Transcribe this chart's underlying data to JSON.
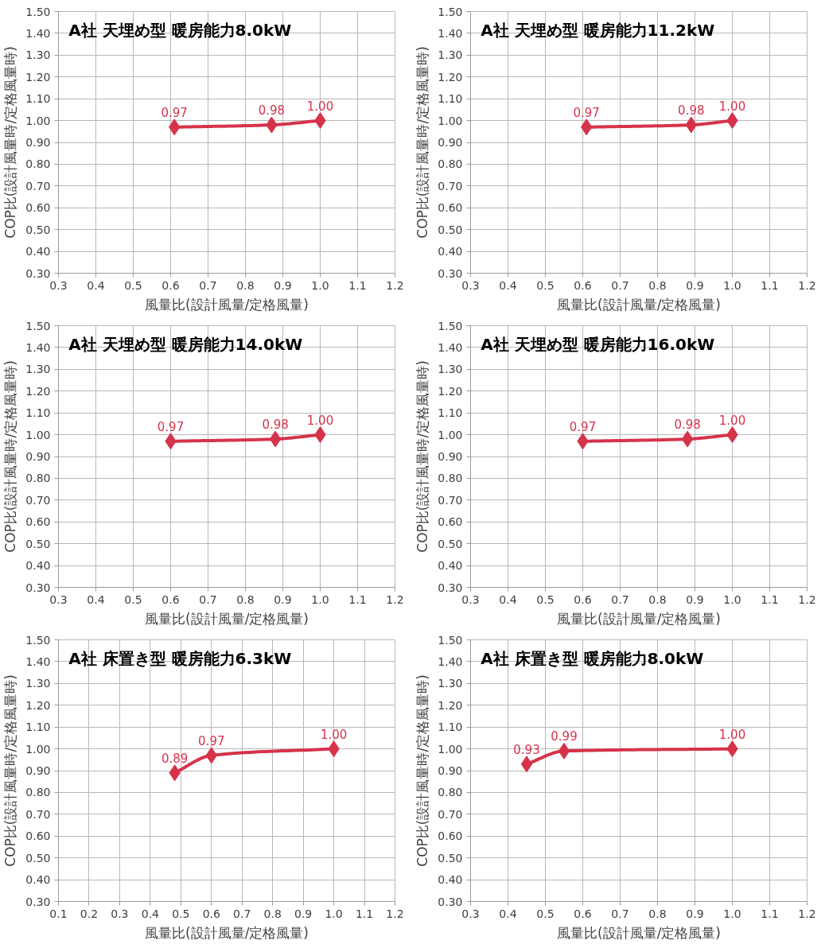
{
  "chart_data": [
    {
      "type": "line",
      "title": "A社 天埋め型 暖房能力8.0kW",
      "xlabel": "風量比(設計風量/定格風量)",
      "ylabel": "COP比(設計風量時/定格風量時)",
      "x": [
        0.61,
        0.87,
        1.0
      ],
      "series": [
        {
          "color": "#d6334b",
          "values": [
            0.97,
            0.98,
            1.0
          ],
          "value_labels": [
            "0.97",
            "0.98",
            "1.00"
          ]
        }
      ],
      "xlim": [
        0.3,
        1.2
      ],
      "ylim": [
        0.3,
        1.5
      ],
      "xticks": [
        {
          "value": 0.3,
          "label": "0.3"
        },
        {
          "value": 0.4,
          "label": "0.4"
        },
        {
          "value": 0.5,
          "label": "0.5"
        },
        {
          "value": 0.6,
          "label": "0.6"
        },
        {
          "value": 0.7,
          "label": "0.7"
        },
        {
          "value": 0.8,
          "label": "0.8"
        },
        {
          "value": 0.9,
          "label": "0.9"
        },
        {
          "value": 1.0,
          "label": "1.0"
        },
        {
          "value": 1.1,
          "label": "1.1"
        },
        {
          "value": 1.2,
          "label": "1.2"
        }
      ],
      "yticks": [
        {
          "value": 0.3,
          "label": "0.30"
        },
        {
          "value": 0.4,
          "label": "0.40"
        },
        {
          "value": 0.5,
          "label": "0.50"
        },
        {
          "value": 0.6,
          "label": "0.60"
        },
        {
          "value": 0.7,
          "label": "0.70"
        },
        {
          "value": 0.8,
          "label": "0.80"
        },
        {
          "value": 0.9,
          "label": "0.90"
        },
        {
          "value": 1.0,
          "label": "1.00"
        },
        {
          "value": 1.1,
          "label": "1.10"
        },
        {
          "value": 1.2,
          "label": "1.20"
        },
        {
          "value": 1.3,
          "label": "1.30"
        },
        {
          "value": 1.4,
          "label": "1.40"
        },
        {
          "value": 1.5,
          "label": "1.50"
        }
      ],
      "marker": "diamond",
      "line_style": "solid",
      "grid": true
    },
    {
      "type": "line",
      "title": "A社 天埋め型 暖房能力11.2kW",
      "xlabel": "風量比(設計風量/定格風量)",
      "ylabel": "COP比(設計風量時/定格風量時)",
      "x": [
        0.61,
        0.89,
        1.0
      ],
      "series": [
        {
          "color": "#d6334b",
          "values": [
            0.97,
            0.98,
            1.0
          ],
          "value_labels": [
            "0.97",
            "0.98",
            "1.00"
          ]
        }
      ],
      "xlim": [
        0.3,
        1.2
      ],
      "ylim": [
        0.3,
        1.5
      ],
      "xticks": [
        {
          "value": 0.3,
          "label": "0.3"
        },
        {
          "value": 0.4,
          "label": "0.4"
        },
        {
          "value": 0.5,
          "label": "0.5"
        },
        {
          "value": 0.6,
          "label": "0.6"
        },
        {
          "value": 0.7,
          "label": "0.7"
        },
        {
          "value": 0.8,
          "label": "0.8"
        },
        {
          "value": 0.9,
          "label": "0.9"
        },
        {
          "value": 1.0,
          "label": "1.0"
        },
        {
          "value": 1.1,
          "label": "1.1"
        },
        {
          "value": 1.2,
          "label": "1.2"
        }
      ],
      "yticks": [
        {
          "value": 0.3,
          "label": "0.30"
        },
        {
          "value": 0.4,
          "label": "0.40"
        },
        {
          "value": 0.5,
          "label": "0.50"
        },
        {
          "value": 0.6,
          "label": "0.60"
        },
        {
          "value": 0.7,
          "label": "0.70"
        },
        {
          "value": 0.8,
          "label": "0.80"
        },
        {
          "value": 0.9,
          "label": "0.90"
        },
        {
          "value": 1.0,
          "label": "1.00"
        },
        {
          "value": 1.1,
          "label": "1.10"
        },
        {
          "value": 1.2,
          "label": "1.20"
        },
        {
          "value": 1.3,
          "label": "1.30"
        },
        {
          "value": 1.4,
          "label": "1.40"
        },
        {
          "value": 1.5,
          "label": "1.50"
        }
      ],
      "marker": "diamond",
      "line_style": "solid",
      "grid": true
    },
    {
      "type": "line",
      "title": "A社 天埋め型 暖房能力14.0kW",
      "xlabel": "風量比(設計風量/定格風量)",
      "ylabel": "COP比(設計風量時/定格風量時)",
      "x": [
        0.6,
        0.88,
        1.0
      ],
      "series": [
        {
          "color": "#d6334b",
          "values": [
            0.97,
            0.98,
            1.0
          ],
          "value_labels": [
            "0.97",
            "0.98",
            "1.00"
          ]
        }
      ],
      "xlim": [
        0.3,
        1.2
      ],
      "ylim": [
        0.3,
        1.5
      ],
      "xticks": [
        {
          "value": 0.3,
          "label": "0.3"
        },
        {
          "value": 0.4,
          "label": "0.4"
        },
        {
          "value": 0.5,
          "label": "0.5"
        },
        {
          "value": 0.6,
          "label": "0.6"
        },
        {
          "value": 0.7,
          "label": "0.7"
        },
        {
          "value": 0.8,
          "label": "0.8"
        },
        {
          "value": 0.9,
          "label": "0.9"
        },
        {
          "value": 1.0,
          "label": "1.0"
        },
        {
          "value": 1.1,
          "label": "1.1"
        },
        {
          "value": 1.2,
          "label": "1.2"
        }
      ],
      "yticks": [
        {
          "value": 0.3,
          "label": "0.30"
        },
        {
          "value": 0.4,
          "label": "0.40"
        },
        {
          "value": 0.5,
          "label": "0.50"
        },
        {
          "value": 0.6,
          "label": "0.60"
        },
        {
          "value": 0.7,
          "label": "0.70"
        },
        {
          "value": 0.8,
          "label": "0.80"
        },
        {
          "value": 0.9,
          "label": "0.90"
        },
        {
          "value": 1.0,
          "label": "1.00"
        },
        {
          "value": 1.1,
          "label": "1.10"
        },
        {
          "value": 1.2,
          "label": "1.20"
        },
        {
          "value": 1.3,
          "label": "1.30"
        },
        {
          "value": 1.4,
          "label": "1.40"
        },
        {
          "value": 1.5,
          "label": "1.50"
        }
      ],
      "marker": "diamond",
      "line_style": "solid",
      "grid": true
    },
    {
      "type": "line",
      "title": "A社 天埋め型 暖房能力16.0kW",
      "xlabel": "風量比(設計風量/定格風量)",
      "ylabel": "COP比(設計風量時/定格風量時)",
      "x": [
        0.6,
        0.88,
        1.0
      ],
      "series": [
        {
          "color": "#d6334b",
          "values": [
            0.97,
            0.98,
            1.0
          ],
          "value_labels": [
            "0.97",
            "0.98",
            "1.00"
          ]
        }
      ],
      "xlim": [
        0.3,
        1.2
      ],
      "ylim": [
        0.3,
        1.5
      ],
      "xticks": [
        {
          "value": 0.3,
          "label": "0.3"
        },
        {
          "value": 0.4,
          "label": "0.4"
        },
        {
          "value": 0.5,
          "label": "0.5"
        },
        {
          "value": 0.6,
          "label": "0.6"
        },
        {
          "value": 0.7,
          "label": "0.7"
        },
        {
          "value": 0.8,
          "label": "0.8"
        },
        {
          "value": 0.9,
          "label": "0.9"
        },
        {
          "value": 1.0,
          "label": "1.0"
        },
        {
          "value": 1.1,
          "label": "1.1"
        },
        {
          "value": 1.2,
          "label": "1.2"
        }
      ],
      "yticks": [
        {
          "value": 0.3,
          "label": "0.30"
        },
        {
          "value": 0.4,
          "label": "0.40"
        },
        {
          "value": 0.5,
          "label": "0.50"
        },
        {
          "value": 0.6,
          "label": "0.60"
        },
        {
          "value": 0.7,
          "label": "0.70"
        },
        {
          "value": 0.8,
          "label": "0.80"
        },
        {
          "value": 0.9,
          "label": "0.90"
        },
        {
          "value": 1.0,
          "label": "1.00"
        },
        {
          "value": 1.1,
          "label": "1.10"
        },
        {
          "value": 1.2,
          "label": "1.20"
        },
        {
          "value": 1.3,
          "label": "1.30"
        },
        {
          "value": 1.4,
          "label": "1.40"
        },
        {
          "value": 1.5,
          "label": "1.50"
        }
      ],
      "marker": "diamond",
      "line_style": "solid",
      "grid": true
    },
    {
      "type": "line",
      "title": "A社 床置き型 暖房能力6.3kW",
      "xlabel": "風量比(設計風量/定格風量)",
      "ylabel": "COP比(設計風量時/定格風量時)",
      "x": [
        0.48,
        0.6,
        1.0
      ],
      "series": [
        {
          "color": "#d6334b",
          "values": [
            0.89,
            0.97,
            1.0
          ],
          "value_labels": [
            "0.89",
            "0.97",
            "1.00"
          ]
        }
      ],
      "xlim": [
        0.1,
        1.2
      ],
      "ylim": [
        0.3,
        1.5
      ],
      "xticks": [
        {
          "value": 0.1,
          "label": "0.1"
        },
        {
          "value": 0.2,
          "label": "0.2"
        },
        {
          "value": 0.3,
          "label": "0.3"
        },
        {
          "value": 0.4,
          "label": "0.4"
        },
        {
          "value": 0.5,
          "label": "0.5"
        },
        {
          "value": 0.6,
          "label": "0.6"
        },
        {
          "value": 0.7,
          "label": "0.7"
        },
        {
          "value": 0.8,
          "label": "0.8"
        },
        {
          "value": 0.9,
          "label": "0.9"
        },
        {
          "value": 1.0,
          "label": "1.0"
        },
        {
          "value": 1.1,
          "label": "1.1"
        },
        {
          "value": 1.2,
          "label": "1.2"
        }
      ],
      "yticks": [
        {
          "value": 0.3,
          "label": "0.30"
        },
        {
          "value": 0.4,
          "label": "0.40"
        },
        {
          "value": 0.5,
          "label": "0.50"
        },
        {
          "value": 0.6,
          "label": "0.60"
        },
        {
          "value": 0.7,
          "label": "0.70"
        },
        {
          "value": 0.8,
          "label": "0.80"
        },
        {
          "value": 0.9,
          "label": "0.90"
        },
        {
          "value": 1.0,
          "label": "1.00"
        },
        {
          "value": 1.1,
          "label": "1.10"
        },
        {
          "value": 1.2,
          "label": "1.20"
        },
        {
          "value": 1.3,
          "label": "1.30"
        },
        {
          "value": 1.4,
          "label": "1.40"
        },
        {
          "value": 1.5,
          "label": "1.50"
        }
      ],
      "marker": "diamond",
      "line_style": "solid",
      "grid": true
    },
    {
      "type": "line",
      "title": "A社 床置き型 暖房能力8.0kW",
      "xlabel": "風量比(設計風量/定格風量)",
      "ylabel": "COP比(設計風量時/定格風量時)",
      "x": [
        0.45,
        0.55,
        1.0
      ],
      "series": [
        {
          "color": "#d6334b",
          "values": [
            0.93,
            0.99,
            1.0
          ],
          "value_labels": [
            "0.93",
            "0.99",
            "1.00"
          ]
        }
      ],
      "xlim": [
        0.3,
        1.2
      ],
      "ylim": [
        0.3,
        1.5
      ],
      "xticks": [
        {
          "value": 0.3,
          "label": "0.3"
        },
        {
          "value": 0.4,
          "label": "0.4"
        },
        {
          "value": 0.5,
          "label": "0.5"
        },
        {
          "value": 0.6,
          "label": "0.6"
        },
        {
          "value": 0.7,
          "label": "0.7"
        },
        {
          "value": 0.8,
          "label": "0.8"
        },
        {
          "value": 0.9,
          "label": "0.9"
        },
        {
          "value": 1.0,
          "label": "1.0"
        },
        {
          "value": 1.1,
          "label": "1.1"
        },
        {
          "value": 1.2,
          "label": "1.2"
        }
      ],
      "yticks": [
        {
          "value": 0.3,
          "label": "0.30"
        },
        {
          "value": 0.4,
          "label": "0.40"
        },
        {
          "value": 0.5,
          "label": "0.50"
        },
        {
          "value": 0.6,
          "label": "0.60"
        },
        {
          "value": 0.7,
          "label": "0.70"
        },
        {
          "value": 0.8,
          "label": "0.80"
        },
        {
          "value": 0.9,
          "label": "0.90"
        },
        {
          "value": 1.0,
          "label": "1.00"
        },
        {
          "value": 1.1,
          "label": "1.10"
        },
        {
          "value": 1.2,
          "label": "1.20"
        },
        {
          "value": 1.3,
          "label": "1.30"
        },
        {
          "value": 1.4,
          "label": "1.40"
        },
        {
          "value": 1.5,
          "label": "1.50"
        }
      ],
      "marker": "diamond",
      "line_style": "solid",
      "grid": true
    }
  ]
}
